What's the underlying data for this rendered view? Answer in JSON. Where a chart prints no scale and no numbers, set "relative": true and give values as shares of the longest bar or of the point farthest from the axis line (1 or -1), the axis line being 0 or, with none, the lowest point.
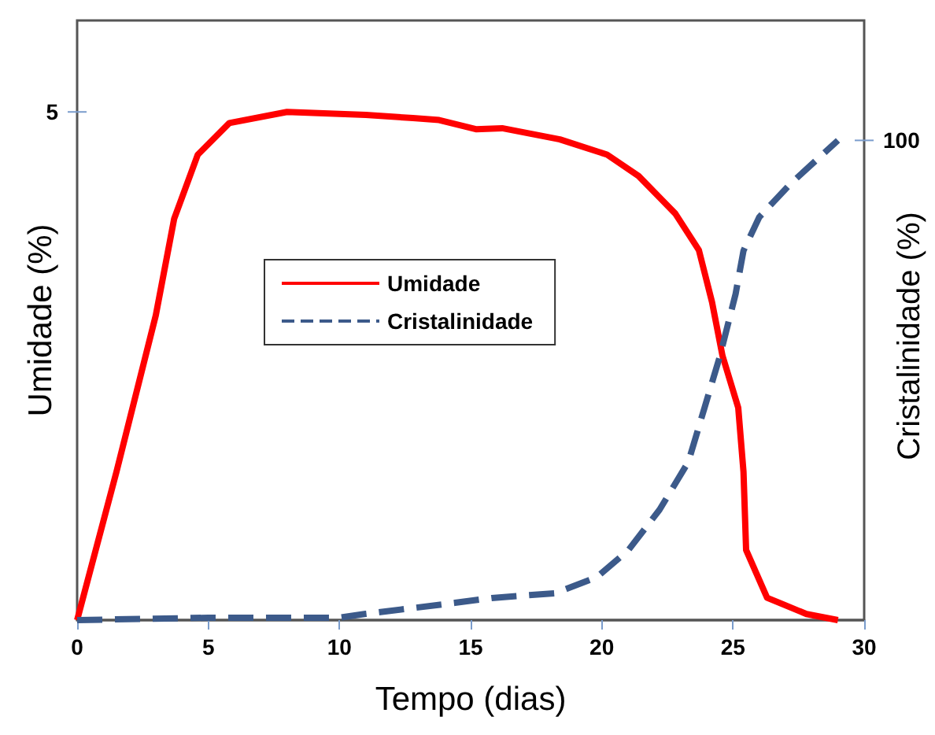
{
  "chart_data": {
    "type": "line",
    "relative": true,
    "xlabel": "Tempo (dias)",
    "ylabel": "Umidade (%)",
    "y2label": "Cristalinidade (%)",
    "xlim": [
      0,
      30
    ],
    "xticks": [
      0,
      5,
      10,
      15,
      20,
      25,
      30
    ],
    "annotations": [
      "5",
      "100"
    ],
    "grid": false,
    "legend": "center left",
    "marker": "none",
    "series": [
      {
        "name": "Umidade",
        "color": "#ff0000",
        "line_style": "solid",
        "x": [
          0,
          1.5,
          3.0,
          3.7,
          4.6,
          5.8,
          8.0,
          11,
          12.8,
          13.8,
          15.2,
          16.2,
          18.4,
          20.2,
          21.4,
          22.8,
          23.7,
          24.2,
          24.6,
          25.2,
          25.4,
          25.5,
          26.3,
          27.8,
          29
        ],
        "values": [
          0,
          0.292,
          0.6,
          0.79,
          0.916,
          0.978,
          1,
          0.994,
          0.988,
          0.984,
          0.966,
          0.968,
          0.946,
          0.916,
          0.874,
          0.8,
          0.728,
          0.626,
          0.52,
          0.418,
          0.292,
          0.138,
          0.044,
          0.012,
          0
        ]
      },
      {
        "name": "Cristalinidade",
        "color": "#3c5a8a",
        "line_style": "dashed",
        "axis": "y2",
        "x": [
          0,
          5,
          10,
          11,
          14.4,
          15.8,
          18.2,
          19.8,
          21,
          22.2,
          23.3,
          23.9,
          24.5,
          25.1,
          25.4,
          26,
          27.2,
          29
        ],
        "values": [
          0,
          0.005,
          0.005,
          0.013,
          0.036,
          0.046,
          0.056,
          0.089,
          0.145,
          0.23,
          0.33,
          0.44,
          0.55,
          0.68,
          0.77,
          0.84,
          0.91,
          1
        ]
      }
    ]
  }
}
